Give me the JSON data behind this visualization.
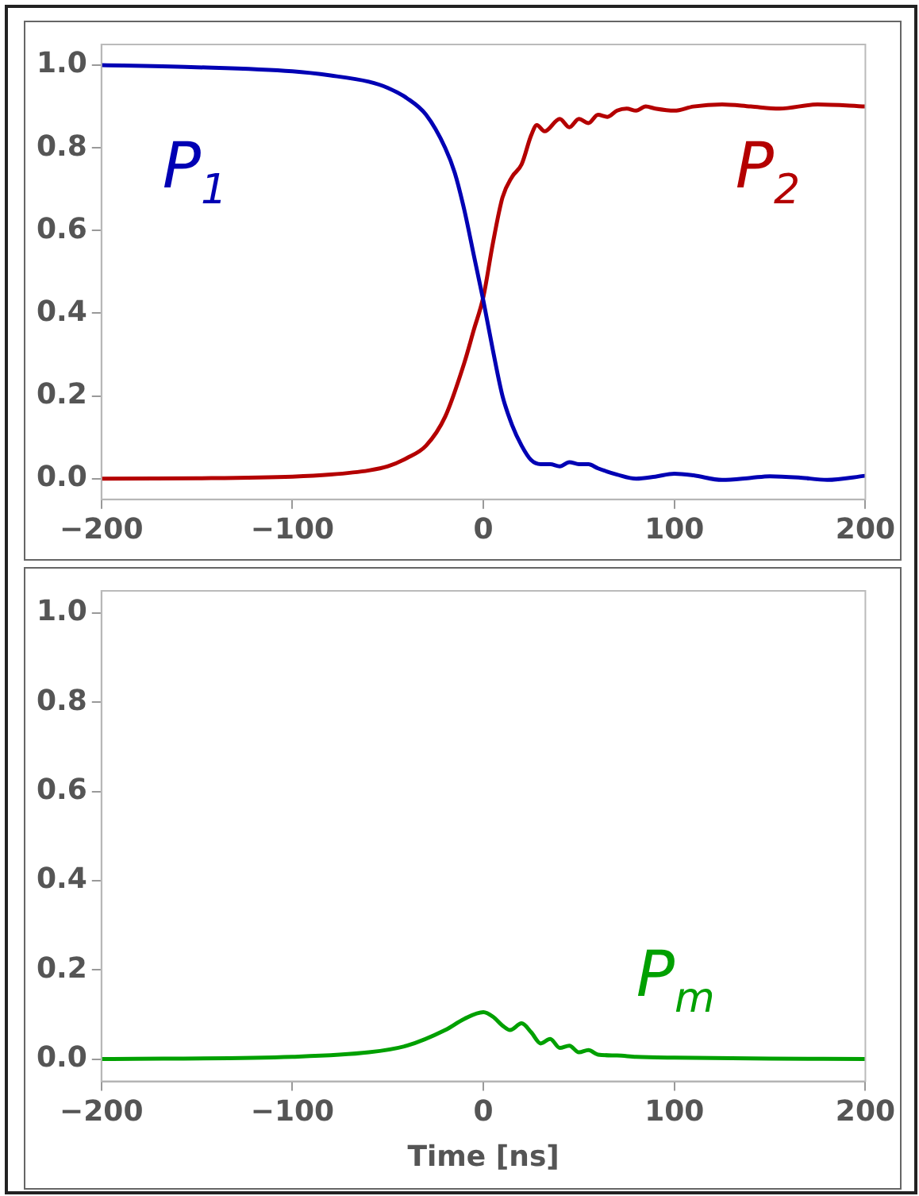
{
  "chart_data": [
    {
      "type": "line",
      "xlim": [
        -200,
        200
      ],
      "xticks": [
        -200,
        -100,
        0,
        100,
        200
      ],
      "ylim": [
        -0.05,
        1.05
      ],
      "yticks": [
        {
          "value": 0,
          "label": "0.0"
        },
        {
          "value": 0.2,
          "label": "0.2"
        },
        {
          "value": 0.4,
          "label": "0.4"
        },
        {
          "value": 0.6,
          "label": "0.6"
        },
        {
          "value": 0.8,
          "label": "0.8"
        },
        {
          "value": 1,
          "label": "1.0"
        }
      ],
      "grid": false,
      "legend": false,
      "marker": "none",
      "line_style": "solid",
      "series": [
        {
          "name": "P$_{1}$",
          "color": "#0000b4",
          "x": [
            -200,
            -150,
            -100,
            -80,
            -60,
            -50,
            -40,
            -30,
            -20,
            -15,
            -10,
            -5,
            0,
            5,
            10,
            15,
            20,
            25,
            30,
            35,
            40,
            45,
            50,
            55,
            60,
            70,
            80,
            90,
            100,
            110,
            125,
            140,
            150,
            165,
            180,
            200
          ],
          "values": [
            1.0,
            0.995,
            0.985,
            0.975,
            0.96,
            0.945,
            0.92,
            0.88,
            0.8,
            0.74,
            0.65,
            0.54,
            0.43,
            0.31,
            0.2,
            0.13,
            0.08,
            0.045,
            0.035,
            0.035,
            0.03,
            0.04,
            0.035,
            0.035,
            0.025,
            0.01,
            0.0,
            0.005,
            0.012,
            0.008,
            -0.003,
            0.002,
            0.006,
            0.003,
            -0.003,
            0.007
          ]
        },
        {
          "name": "P$_{2}$",
          "color": "#b40000",
          "x": [
            -200,
            -150,
            -100,
            -80,
            -60,
            -50,
            -40,
            -30,
            -20,
            -10,
            -5,
            0,
            5,
            10,
            15,
            20,
            25,
            28,
            32,
            40,
            45,
            50,
            55,
            60,
            65,
            70,
            75,
            80,
            85,
            90,
            100,
            110,
            125,
            140,
            155,
            175,
            200
          ],
          "values": [
            0.0,
            0.001,
            0.005,
            0.01,
            0.02,
            0.03,
            0.05,
            0.08,
            0.15,
            0.28,
            0.36,
            0.44,
            0.57,
            0.68,
            0.73,
            0.76,
            0.83,
            0.855,
            0.84,
            0.87,
            0.85,
            0.87,
            0.86,
            0.88,
            0.875,
            0.89,
            0.895,
            0.89,
            0.9,
            0.895,
            0.89,
            0.9,
            0.905,
            0.9,
            0.895,
            0.905,
            0.9
          ]
        }
      ]
    },
    {
      "type": "line",
      "xlabel": "Time [ns]",
      "xlim": [
        -200,
        200
      ],
      "xticks": [
        -200,
        -100,
        0,
        100,
        200
      ],
      "ylim": [
        -0.05,
        1.05
      ],
      "yticks": [
        {
          "value": 0,
          "label": "0.0"
        },
        {
          "value": 0.2,
          "label": "0.2"
        },
        {
          "value": 0.4,
          "label": "0.4"
        },
        {
          "value": 0.6,
          "label": "0.6"
        },
        {
          "value": 0.8,
          "label": "0.8"
        },
        {
          "value": 1,
          "label": "1.0"
        }
      ],
      "grid": false,
      "legend": false,
      "marker": "none",
      "line_style": "solid",
      "series": [
        {
          "name": "P$_{m}$",
          "color": "#00a000",
          "x": [
            -200,
            -100,
            -60,
            -40,
            -20,
            -10,
            0,
            5,
            10,
            14,
            20,
            25,
            30,
            35,
            40,
            45,
            50,
            55,
            60,
            70,
            80,
            100,
            150,
            200
          ],
          "values": [
            0.0,
            0.005,
            0.015,
            0.03,
            0.065,
            0.09,
            0.105,
            0.095,
            0.075,
            0.065,
            0.08,
            0.06,
            0.035,
            0.045,
            0.025,
            0.03,
            0.015,
            0.02,
            0.01,
            0.008,
            0.005,
            0.003,
            0.001,
            0.0
          ]
        }
      ]
    }
  ]
}
